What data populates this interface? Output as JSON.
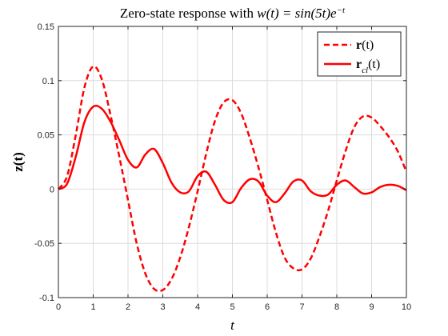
{
  "chart_data": {
    "type": "line",
    "title": "Zero-state response with w(t) = sin(5t)e^{-t}",
    "title_parts": {
      "prefix": "Zero-state response with ",
      "math": "w(t) = sin(5t)e",
      "exponent": "−t"
    },
    "xlabel": "t",
    "ylabel": "z(t)",
    "xlim": [
      0,
      10
    ],
    "ylim": [
      -0.1,
      0.15
    ],
    "xticks": [
      0,
      1,
      2,
      3,
      4,
      5,
      6,
      7,
      8,
      9,
      10
    ],
    "xtick_labels": [
      "0",
      "1",
      "2",
      "3",
      "4",
      "5",
      "6",
      "7",
      "8",
      "9",
      "10"
    ],
    "yticks": [
      -0.1,
      -0.05,
      0,
      0.05,
      0.1,
      0.15
    ],
    "ytick_labels": [
      "-0.1",
      "-0.05",
      "0",
      "0.05",
      "0.1",
      "0.15"
    ],
    "grid": true,
    "legend_position": "top-right",
    "x": [
      0,
      0.25,
      0.5,
      0.75,
      1,
      1.25,
      1.5,
      1.75,
      2,
      2.25,
      2.5,
      2.75,
      3,
      3.25,
      3.5,
      3.75,
      4,
      4.25,
      4.5,
      4.75,
      5,
      5.25,
      5.5,
      5.75,
      6,
      6.25,
      6.5,
      6.75,
      7,
      7.25,
      7.5,
      7.75,
      8,
      8.25,
      8.5,
      8.75,
      9,
      9.25,
      9.5,
      9.75,
      10
    ],
    "series": [
      {
        "name": "r(t)",
        "legend_main": "r",
        "legend_sub": "",
        "legend_arg": "(t)",
        "style": "dashed",
        "color": "#ff0000",
        "values": [
          0,
          0.012,
          0.05,
          0.094,
          0.113,
          0.101,
          0.068,
          0.03,
          -0.01,
          -0.05,
          -0.078,
          -0.092,
          -0.093,
          -0.083,
          -0.063,
          -0.035,
          -0.002,
          0.033,
          0.063,
          0.08,
          0.082,
          0.07,
          0.047,
          0.02,
          -0.01,
          -0.04,
          -0.063,
          -0.073,
          -0.074,
          -0.064,
          -0.044,
          -0.02,
          0.008,
          0.035,
          0.057,
          0.067,
          0.066,
          0.058,
          0.048,
          0.035,
          0.016
        ]
      },
      {
        "name": "r_cl(t)",
        "legend_main": "r",
        "legend_sub": "cl",
        "legend_arg": "(t)",
        "style": "solid",
        "color": "#ff0000",
        "values": [
          0,
          0.005,
          0.03,
          0.062,
          0.076,
          0.074,
          0.062,
          0.045,
          0.027,
          0.02,
          0.032,
          0.037,
          0.024,
          0.006,
          -0.003,
          -0.002,
          0.012,
          0.016,
          0.004,
          -0.01,
          -0.012,
          0.001,
          0.009,
          0.007,
          -0.006,
          -0.012,
          -0.004,
          0.007,
          0.008,
          -0.002,
          -0.006,
          -0.005,
          0.004,
          0.008,
          0.002,
          -0.004,
          -0.003,
          0.002,
          0.004,
          0.003,
          -0.001
        ]
      }
    ]
  }
}
